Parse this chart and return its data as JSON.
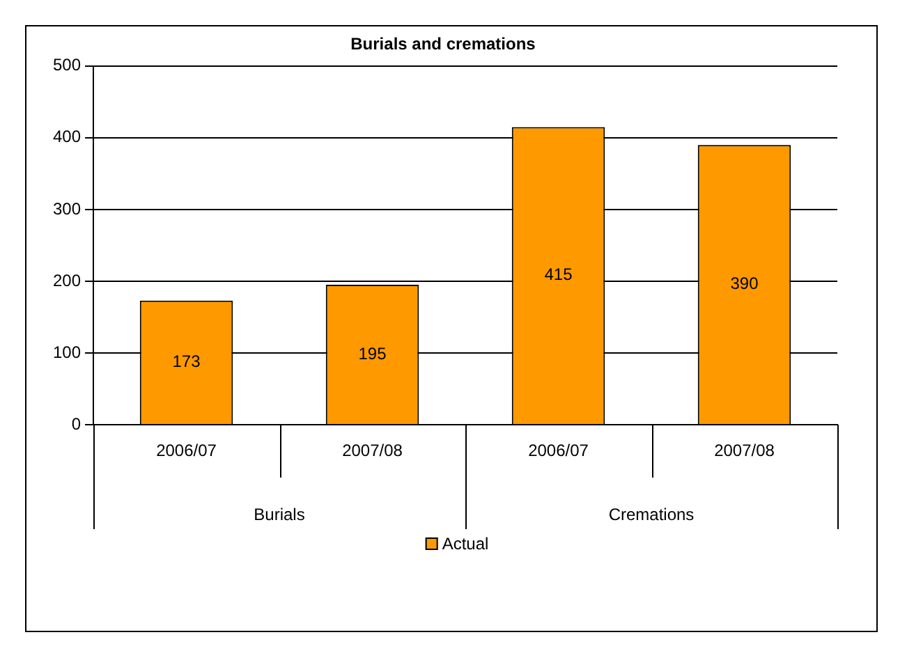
{
  "chart_data": {
    "type": "bar",
    "title": "Burials and cremations",
    "categories": [
      "2006/07",
      "2007/08",
      "2006/07",
      "2007/08"
    ],
    "series": [
      {
        "name": "Actual",
        "color": "#ff9900",
        "values": [
          173,
          195,
          415,
          390
        ]
      }
    ],
    "ylim": [
      0,
      500
    ],
    "yticks": [
      0,
      100,
      200,
      300,
      400,
      500
    ],
    "grid": "y",
    "legend": "bottom",
    "data_labels": true,
    "annotations": [
      "Burials",
      "Cremations"
    ]
  }
}
